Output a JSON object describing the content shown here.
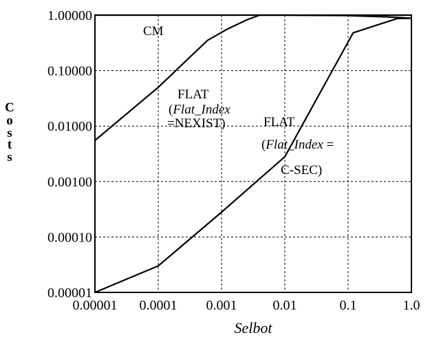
{
  "chart_data": {
    "type": "line",
    "title": "",
    "xlabel": "Selbot",
    "ylabel": "Costs",
    "x_scale": "log",
    "y_scale": "log",
    "xlim": [
      1e-05,
      1.0
    ],
    "ylim": [
      1e-05,
      1.0
    ],
    "x_ticks": [
      "0.00001",
      "0.0001",
      "0.001",
      "0.01",
      "0.1",
      "1.0"
    ],
    "y_ticks": [
      "1.00000",
      "0.10000",
      "0.01000",
      "0.00100",
      "0.00010",
      "0.00001"
    ],
    "grid": true,
    "series": [
      {
        "name": "CM",
        "x": [
          1e-05,
          0.0001,
          0.001,
          0.01,
          0.1,
          0.4,
          1.0
        ],
        "y": [
          1.0,
          1.0,
          1.0,
          1.0,
          0.98,
          0.93,
          0.88
        ]
      },
      {
        "name": "FLAT (Flat_Index =NEXIST)",
        "x": [
          1e-05,
          0.0001,
          0.0006,
          0.0012,
          0.0025,
          0.004,
          0.1,
          1.0
        ],
        "y": [
          0.0055,
          0.05,
          0.35,
          0.55,
          0.82,
          1.0,
          1.0,
          1.0
        ]
      },
      {
        "name": "FLAT (Flat_Index = C-SEC)",
        "x": [
          1e-05,
          0.0001,
          0.001,
          0.01,
          0.12,
          0.4,
          0.6,
          1.0
        ],
        "y": [
          3.5e-06,
          3e-05,
          0.00028,
          0.0028,
          0.48,
          0.75,
          0.87,
          0.88
        ]
      }
    ],
    "annotations": [
      {
        "lines": [
          "CM"
        ]
      },
      {
        "lines": [
          "FLAT",
          "(Flat_Index",
          "=NEXIST)"
        ]
      },
      {
        "lines": [
          "FLAT",
          "(Flat_Index =",
          "C-SEC)"
        ]
      }
    ]
  }
}
